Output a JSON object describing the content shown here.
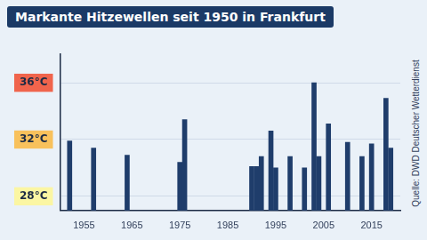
{
  "chart_data": {
    "type": "bar",
    "title": "Markante Hitzewellen seit 1950 in Frankfurt",
    "source": "Quelle: DWD Deutscher Wetterdienst",
    "x": [
      1952,
      1957,
      1964,
      1975,
      1976,
      1990,
      1991,
      1992,
      1994,
      1995,
      1998,
      2001,
      2003,
      2004,
      2006,
      2010,
      2013,
      2015,
      2018,
      2019
    ],
    "values": [
      31.9,
      31.4,
      30.9,
      30.4,
      33.4,
      30.1,
      30.1,
      30.8,
      32.6,
      30.0,
      30.8,
      30.0,
      36.0,
      30.8,
      33.1,
      31.8,
      30.8,
      31.7,
      34.9,
      31.4
    ],
    "color": "#1f3d6b",
    "xlim": [
      1950,
      2021
    ],
    "xticks": [
      1955,
      1965,
      1975,
      1985,
      1995,
      2005,
      2015
    ],
    "ylim": [
      27,
      38
    ],
    "yticks": [
      {
        "value": 28,
        "label": "28°C"
      },
      {
        "value": 32,
        "label": "32°C"
      },
      {
        "value": 36,
        "label": "36°C"
      }
    ],
    "grid": true
  }
}
